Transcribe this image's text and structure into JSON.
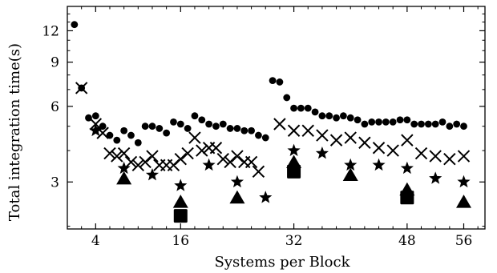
{
  "chart_data": {
    "type": "scatter",
    "title": "",
    "xlabel": "Systems per Block",
    "ylabel": "Total integration time(s)",
    "xlim": [
      0,
      59
    ],
    "ylim": [
      1.95,
      15
    ],
    "y_scale": "log",
    "x_ticks": [
      4,
      16,
      32,
      48,
      56
    ],
    "x_tick_labels": [
      "4",
      "16",
      "32",
      "48",
      "56"
    ],
    "y_ticks": [
      3,
      6,
      9,
      12
    ],
    "y_tick_labels": [
      "3",
      "6",
      "9",
      "12"
    ],
    "grid": false,
    "legend": "none",
    "colors": {
      "markers": "#000000",
      "background": "#ffffff",
      "axes": "#000000"
    },
    "series": [
      {
        "marker": "circle",
        "points": [
          [
            1,
            12.7
          ],
          [
            2,
            7.1
          ],
          [
            3,
            5.4
          ],
          [
            4,
            5.5
          ],
          [
            5,
            5.0
          ],
          [
            6,
            4.6
          ],
          [
            7,
            4.4
          ],
          [
            8,
            4.8
          ],
          [
            9,
            4.6
          ],
          [
            10,
            4.3
          ],
          [
            11,
            5.0
          ],
          [
            12,
            5.0
          ],
          [
            13,
            4.9
          ],
          [
            14,
            4.7
          ],
          [
            15,
            5.2
          ],
          [
            16,
            5.1
          ],
          [
            17,
            4.9
          ],
          [
            18,
            5.5
          ],
          [
            19,
            5.3
          ],
          [
            20,
            5.1
          ],
          [
            21,
            5.0
          ],
          [
            22,
            5.1
          ],
          [
            23,
            4.9
          ],
          [
            24,
            4.9
          ],
          [
            25,
            4.8
          ],
          [
            26,
            4.8
          ],
          [
            27,
            4.6
          ],
          [
            28,
            4.5
          ],
          [
            29,
            7.6
          ],
          [
            30,
            7.5
          ],
          [
            31,
            6.5
          ],
          [
            32,
            5.9
          ],
          [
            33,
            5.9
          ],
          [
            34,
            5.9
          ],
          [
            35,
            5.7
          ],
          [
            36,
            5.5
          ],
          [
            37,
            5.5
          ],
          [
            38,
            5.4
          ],
          [
            39,
            5.5
          ],
          [
            40,
            5.4
          ],
          [
            41,
            5.3
          ],
          [
            42,
            5.1
          ],
          [
            43,
            5.2
          ],
          [
            44,
            5.2
          ],
          [
            45,
            5.2
          ],
          [
            46,
            5.2
          ],
          [
            47,
            5.3
          ],
          [
            48,
            5.3
          ],
          [
            49,
            5.1
          ],
          [
            50,
            5.1
          ],
          [
            51,
            5.1
          ],
          [
            52,
            5.1
          ],
          [
            53,
            5.2
          ],
          [
            54,
            5.0
          ],
          [
            55,
            5.1
          ],
          [
            56,
            5.0
          ]
        ]
      },
      {
        "marker": "x",
        "points": [
          [
            2,
            7.1
          ],
          [
            4,
            5.1
          ],
          [
            5,
            4.7
          ],
          [
            6,
            3.9
          ],
          [
            7,
            3.8
          ],
          [
            8,
            3.9
          ],
          [
            9,
            3.6
          ],
          [
            10,
            3.5
          ],
          [
            11,
            3.6
          ],
          [
            12,
            3.8
          ],
          [
            13,
            3.5
          ],
          [
            14,
            3.5
          ],
          [
            15,
            3.5
          ],
          [
            16,
            3.7
          ],
          [
            17,
            3.9
          ],
          [
            18,
            4.5
          ],
          [
            19,
            4.0
          ],
          [
            20,
            4.1
          ],
          [
            21,
            4.1
          ],
          [
            22,
            3.7
          ],
          [
            23,
            3.6
          ],
          [
            24,
            3.8
          ],
          [
            25,
            3.6
          ],
          [
            26,
            3.6
          ],
          [
            27,
            3.3
          ],
          [
            30,
            5.1
          ],
          [
            32,
            4.8
          ],
          [
            34,
            4.8
          ],
          [
            36,
            4.6
          ],
          [
            38,
            4.4
          ],
          [
            40,
            4.5
          ],
          [
            42,
            4.3
          ],
          [
            44,
            4.1
          ],
          [
            46,
            4.0
          ],
          [
            48,
            4.4
          ],
          [
            50,
            3.9
          ],
          [
            52,
            3.8
          ],
          [
            54,
            3.7
          ],
          [
            56,
            3.8
          ]
        ]
      },
      {
        "marker": "star",
        "points": [
          [
            4,
            4.8
          ],
          [
            8,
            3.4
          ],
          [
            12,
            3.2
          ],
          [
            16,
            2.9
          ],
          [
            20,
            3.5
          ],
          [
            24,
            3.0
          ],
          [
            28,
            2.6
          ],
          [
            32,
            4.0
          ],
          [
            36,
            3.9
          ],
          [
            40,
            3.5
          ],
          [
            44,
            3.5
          ],
          [
            48,
            3.4
          ],
          [
            52,
            3.1
          ],
          [
            56,
            3.0
          ]
        ]
      },
      {
        "marker": "triangle",
        "points": [
          [
            8,
            3.1
          ],
          [
            16,
            2.5
          ],
          [
            24,
            2.6
          ],
          [
            32,
            3.6
          ],
          [
            40,
            3.2
          ],
          [
            48,
            2.8
          ],
          [
            56,
            2.5
          ]
        ]
      },
      {
        "marker": "square",
        "points": [
          [
            16,
            2.2
          ],
          [
            32,
            3.3
          ],
          [
            48,
            2.6
          ]
        ]
      }
    ]
  }
}
